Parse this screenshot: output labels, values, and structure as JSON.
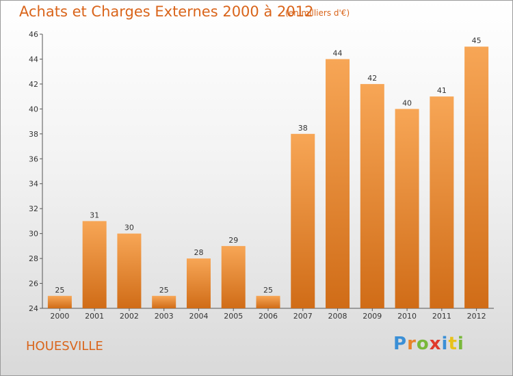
{
  "title": "Achats et Charges Externes 2000 à 2012",
  "unit_note": "(en milliers d'€)",
  "location": "HOUESVILLE",
  "brand": {
    "letters": [
      "P",
      "r",
      "o",
      "x",
      "i",
      "t",
      "i"
    ],
    "colors": [
      "#3a8fd6",
      "#e8832a",
      "#78b83a",
      "#e03a2a",
      "#3a8fd6",
      "#e8c21a",
      "#78b83a"
    ]
  },
  "colors": {
    "bar_top": "#f7a656",
    "bar_bottom": "#d06c17",
    "accent": "#d9641a"
  },
  "chart_data": {
    "type": "bar",
    "categories": [
      "2000",
      "2001",
      "2002",
      "2003",
      "2004",
      "2005",
      "2006",
      "2007",
      "2008",
      "2009",
      "2010",
      "2011",
      "2012"
    ],
    "values": [
      25,
      31,
      30,
      25,
      28,
      29,
      25,
      38,
      44,
      42,
      40,
      41,
      45
    ],
    "ylim": [
      24,
      46
    ],
    "yticks": [
      24,
      26,
      28,
      30,
      32,
      34,
      36,
      38,
      40,
      42,
      44,
      46
    ],
    "grid": false
  }
}
